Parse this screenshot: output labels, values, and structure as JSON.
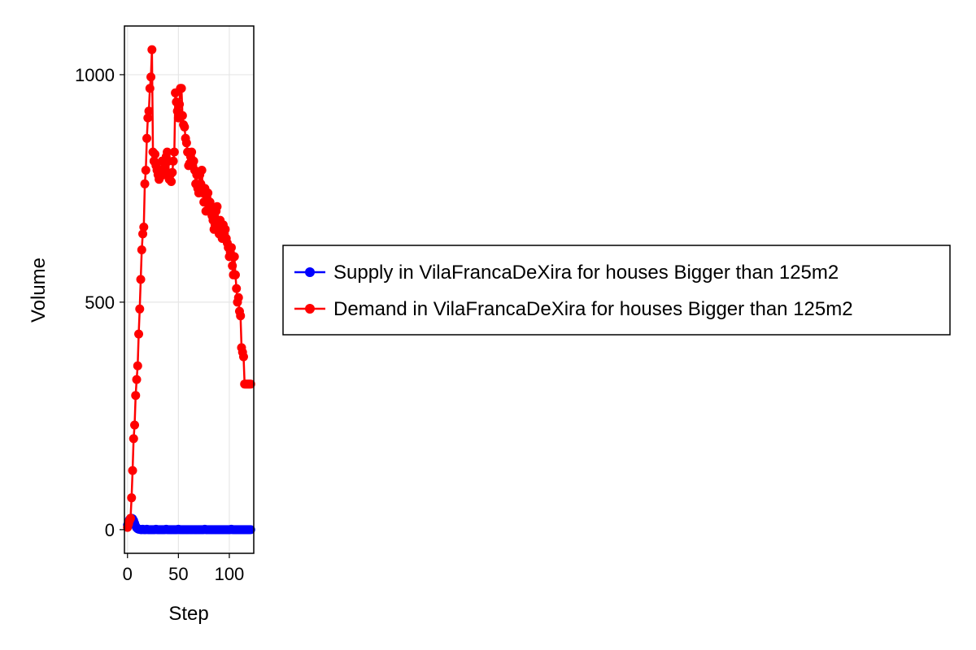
{
  "chart_data": {
    "type": "line",
    "xlabel": "Step",
    "ylabel": "Volume",
    "xlim": [
      -3,
      124
    ],
    "ylim": [
      -52,
      1107
    ],
    "xticks": [
      0,
      50,
      100
    ],
    "yticks": [
      0,
      500,
      1000
    ],
    "grid": true,
    "legend_position": "right",
    "series": [
      {
        "name": "Supply in VilaFrancaDeXira for houses Bigger than 125m2",
        "color": "#0000ff",
        "marker": "circle",
        "x": [
          0,
          1,
          2,
          3,
          4,
          5,
          6,
          7,
          8,
          9,
          10,
          11,
          12,
          13,
          14,
          15,
          16,
          17,
          18,
          19,
          20,
          21,
          22,
          23,
          24,
          25,
          26,
          27,
          28,
          29,
          30,
          31,
          32,
          33,
          34,
          35,
          36,
          37,
          38,
          39,
          40,
          41,
          42,
          43,
          44,
          45,
          46,
          47,
          48,
          49,
          50,
          51,
          52,
          53,
          54,
          55,
          56,
          57,
          58,
          59,
          60,
          61,
          62,
          63,
          64,
          65,
          66,
          67,
          68,
          69,
          70,
          71,
          72,
          73,
          74,
          75,
          76,
          77,
          78,
          79,
          80,
          81,
          82,
          83,
          84,
          85,
          86,
          87,
          88,
          89,
          90,
          91,
          92,
          93,
          94,
          95,
          96,
          97,
          98,
          99,
          100,
          101,
          102,
          103,
          104,
          105,
          106,
          107,
          108,
          109,
          110,
          111,
          112,
          113,
          114,
          115,
          116,
          117,
          118,
          119,
          120,
          121
        ],
        "y": [
          10,
          18,
          22,
          24,
          25,
          24,
          20,
          14,
          8,
          4,
          2,
          1,
          1,
          0,
          0,
          1,
          0,
          0,
          0,
          1,
          0,
          0,
          0,
          0,
          0,
          0,
          0,
          0,
          1,
          0,
          0,
          0,
          0,
          0,
          0,
          0,
          0,
          0,
          1,
          0,
          0,
          0,
          0,
          0,
          0,
          0,
          0,
          0,
          0,
          0,
          1,
          0,
          0,
          0,
          0,
          0,
          0,
          0,
          0,
          0,
          0,
          0,
          0,
          0,
          0,
          0,
          0,
          0,
          0,
          0,
          0,
          0,
          0,
          0,
          0,
          0,
          1,
          0,
          0,
          0,
          0,
          0,
          0,
          0,
          0,
          0,
          0,
          0,
          0,
          0,
          0,
          0,
          0,
          0,
          0,
          0,
          0,
          0,
          0,
          0,
          0,
          0,
          1,
          0,
          0,
          0,
          0,
          0,
          0,
          0,
          0,
          0,
          0,
          0,
          0,
          0,
          0,
          0,
          0,
          0,
          0,
          0
        ]
      },
      {
        "name": "Demand in VilaFrancaDeXira for houses Bigger than 125m2",
        "color": "#ff0000",
        "marker": "circle",
        "x": [
          0,
          1,
          2,
          3,
          4,
          5,
          6,
          7,
          8,
          9,
          10,
          11,
          12,
          13,
          14,
          15,
          16,
          17,
          18,
          19,
          20,
          21,
          22,
          23,
          24,
          25,
          26,
          27,
          28,
          29,
          30,
          31,
          32,
          33,
          34,
          35,
          36,
          37,
          38,
          39,
          40,
          41,
          42,
          43,
          44,
          45,
          46,
          47,
          48,
          49,
          50,
          51,
          52,
          53,
          54,
          55,
          56,
          57,
          58,
          59,
          60,
          61,
          62,
          63,
          64,
          65,
          66,
          67,
          68,
          69,
          70,
          71,
          72,
          73,
          74,
          75,
          76,
          77,
          78,
          79,
          80,
          81,
          82,
          83,
          84,
          85,
          86,
          87,
          88,
          89,
          90,
          91,
          92,
          93,
          94,
          95,
          96,
          97,
          98,
          99,
          100,
          101,
          102,
          103,
          104,
          105,
          106,
          107,
          108,
          109,
          110,
          111,
          112,
          113,
          114,
          115,
          116,
          117,
          118,
          119,
          120,
          121
        ],
        "y": [
          5,
          12,
          20,
          25,
          70,
          130,
          200,
          230,
          295,
          330,
          360,
          430,
          485,
          550,
          615,
          650,
          665,
          760,
          790,
          860,
          905,
          920,
          970,
          995,
          1055,
          830,
          810,
          825,
          800,
          790,
          780,
          770,
          775,
          790,
          810,
          780,
          790,
          800,
          820,
          830,
          810,
          770,
          780,
          765,
          785,
          810,
          830,
          960,
          940,
          920,
          905,
          935,
          970,
          970,
          910,
          890,
          885,
          860,
          850,
          830,
          800,
          805,
          820,
          830,
          800,
          810,
          790,
          760,
          780,
          750,
          740,
          780,
          760,
          790,
          740,
          720,
          750,
          700,
          730,
          740,
          710,
          720,
          700,
          690,
          680,
          660,
          670,
          700,
          710,
          680,
          650,
          680,
          660,
          640,
          670,
          650,
          660,
          640,
          630,
          620,
          600,
          610,
          620,
          580,
          560,
          600,
          560,
          530,
          500,
          510,
          480,
          470,
          400,
          390,
          380,
          320,
          320,
          320,
          320,
          320,
          320,
          320
        ]
      }
    ]
  }
}
